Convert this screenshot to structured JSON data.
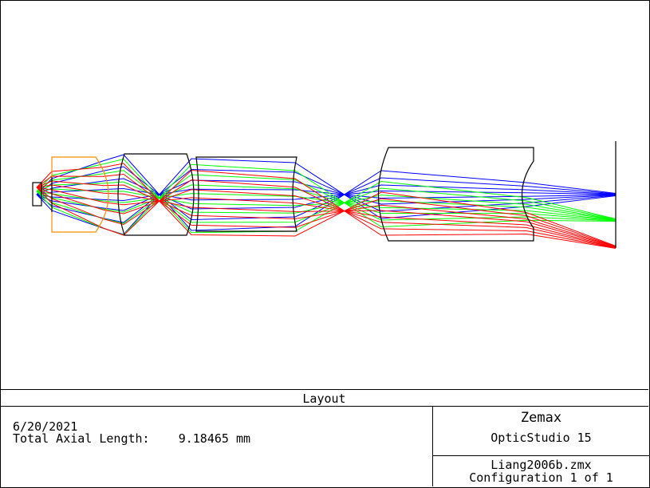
{
  "diagram": {
    "title": "Layout",
    "ray_colors": {
      "field1": "#0000ff",
      "field2": "#00ff00",
      "field3": "#ff0000"
    },
    "element_color": "#000000",
    "aperture_color": "#ff8c00"
  },
  "footer": {
    "date": "6/20/2021",
    "axial_length_label": "Total Axial Length:",
    "axial_length_value": "9.18465 mm",
    "brand": "Zemax",
    "product": "OpticStudio 15",
    "file": "Liang2006b.zmx",
    "configuration": "Configuration 1 of 1"
  }
}
